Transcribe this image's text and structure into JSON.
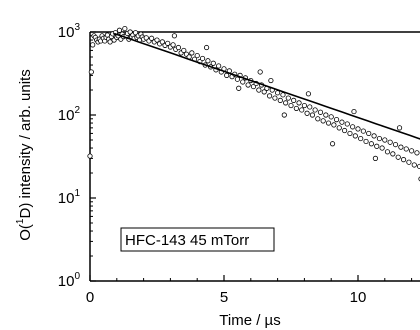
{
  "chart_data": {
    "type": "scatter",
    "title": "",
    "xlabel": "Time / µs",
    "ylabel": "O(1D) intensity / arb. units",
    "ylabel_parts": {
      "pre": "O(",
      "sup": "1",
      "post": "D) intensity / arb. units"
    },
    "xlim": [
      -0.1,
      13.5
    ],
    "ylim": [
      1,
      1000
    ],
    "yscale": "log",
    "grid": false,
    "x_ticks": [
      {
        "value": 0,
        "label": "0"
      },
      {
        "value": 5,
        "label": "5"
      },
      {
        "value": 10,
        "label": "10"
      }
    ],
    "y_ticks": [
      {
        "value": 1,
        "base": "10",
        "exp": "0"
      },
      {
        "value": 10,
        "base": "10",
        "exp": "1"
      },
      {
        "value": 100,
        "base": "10",
        "exp": "2"
      },
      {
        "value": 1000,
        "base": "10",
        "exp": "3"
      }
    ],
    "annotation": "HFC-143 45 mTorr",
    "fit": {
      "type": "exponential",
      "x": [
        0.9,
        13.5
      ],
      "y": [
        960,
        38
      ]
    },
    "series": [
      {
        "marker": "open-circle",
        "points": [
          [
            0.0,
            32
          ],
          [
            0.05,
            330
          ],
          [
            0.1,
            700
          ],
          [
            0.15,
            900
          ],
          [
            0.2,
            860
          ],
          [
            0.25,
            800
          ],
          [
            0.3,
            760
          ],
          [
            0.35,
            820
          ],
          [
            0.4,
            780
          ],
          [
            0.45,
            900
          ],
          [
            0.5,
            840
          ],
          [
            0.55,
            780
          ],
          [
            0.6,
            860
          ],
          [
            0.65,
            920
          ],
          [
            0.7,
            820
          ],
          [
            0.75,
            760
          ],
          [
            0.8,
            880
          ],
          [
            0.85,
            950
          ],
          [
            0.9,
            800
          ],
          [
            0.95,
            980
          ],
          [
            1.0,
            860
          ],
          [
            1.05,
            900
          ],
          [
            1.1,
            1050
          ],
          [
            1.15,
            820
          ],
          [
            1.2,
            940
          ],
          [
            1.25,
            880
          ],
          [
            1.3,
            1100
          ],
          [
            1.35,
            900
          ],
          [
            1.4,
            960
          ],
          [
            1.45,
            820
          ],
          [
            1.5,
            1000
          ],
          [
            1.55,
            880
          ],
          [
            1.6,
            920
          ],
          [
            1.65,
            840
          ],
          [
            1.7,
            980
          ],
          [
            1.75,
            860
          ],
          [
            1.8,
            900
          ],
          [
            1.85,
            800
          ],
          [
            1.9,
            940
          ],
          [
            1.95,
            870
          ],
          [
            2.0,
            820
          ],
          [
            2.1,
            850
          ],
          [
            2.2,
            780
          ],
          [
            2.3,
            840
          ],
          [
            2.4,
            760
          ],
          [
            2.5,
            800
          ],
          [
            2.6,
            720
          ],
          [
            2.7,
            760
          ],
          [
            2.8,
            690
          ],
          [
            2.9,
            730
          ],
          [
            3.0,
            660
          ],
          [
            3.1,
            700
          ],
          [
            3.2,
            620
          ],
          [
            3.3,
            650
          ],
          [
            3.4,
            560
          ],
          [
            3.5,
            600
          ],
          [
            3.6,
            540
          ],
          [
            3.7,
            500
          ],
          [
            3.8,
            560
          ],
          [
            3.9,
            470
          ],
          [
            4.0,
            520
          ],
          [
            4.1,
            440
          ],
          [
            4.2,
            480
          ],
          [
            4.3,
            400
          ],
          [
            4.4,
            450
          ],
          [
            4.5,
            380
          ],
          [
            4.6,
            420
          ],
          [
            4.7,
            350
          ],
          [
            4.8,
            390
          ],
          [
            4.9,
            330
          ],
          [
            5.0,
            360
          ],
          [
            5.1,
            300
          ],
          [
            5.2,
            340
          ],
          [
            5.3,
            290
          ],
          [
            5.4,
            310
          ],
          [
            5.5,
            270
          ],
          [
            5.6,
            300
          ],
          [
            5.7,
            250
          ],
          [
            5.8,
            280
          ],
          [
            5.9,
            230
          ],
          [
            6.0,
            260
          ],
          [
            6.1,
            220
          ],
          [
            6.2,
            240
          ],
          [
            6.3,
            200
          ],
          [
            6.4,
            230
          ],
          [
            6.5,
            190
          ],
          [
            6.6,
            210
          ],
          [
            6.7,
            170
          ],
          [
            6.8,
            200
          ],
          [
            6.9,
            160
          ],
          [
            7.0,
            185
          ],
          [
            7.1,
            150
          ],
          [
            7.2,
            175
          ],
          [
            7.3,
            140
          ],
          [
            7.4,
            160
          ],
          [
            7.5,
            130
          ],
          [
            7.6,
            150
          ],
          [
            7.7,
            120
          ],
          [
            7.8,
            140
          ],
          [
            7.9,
            115
          ],
          [
            8.0,
            130
          ],
          [
            8.1,
            105
          ],
          [
            8.2,
            125
          ],
          [
            8.3,
            100
          ],
          [
            8.4,
            115
          ],
          [
            8.5,
            90
          ],
          [
            8.6,
            108
          ],
          [
            8.7,
            85
          ],
          [
            8.8,
            100
          ],
          [
            8.9,
            80
          ],
          [
            9.0,
            95
          ],
          [
            9.1,
            76
          ],
          [
            9.2,
            88
          ],
          [
            9.3,
            70
          ],
          [
            9.4,
            82
          ],
          [
            9.5,
            65
          ],
          [
            9.6,
            78
          ],
          [
            9.7,
            60
          ],
          [
            9.8,
            72
          ],
          [
            9.9,
            56
          ],
          [
            10.0,
            68
          ],
          [
            10.1,
            52
          ],
          [
            10.2,
            64
          ],
          [
            10.3,
            48
          ],
          [
            10.4,
            60
          ],
          [
            10.5,
            45
          ],
          [
            10.6,
            56
          ],
          [
            10.7,
            42
          ],
          [
            10.8,
            52
          ],
          [
            10.9,
            40
          ],
          [
            11.0,
            50
          ],
          [
            11.1,
            36
          ],
          [
            11.2,
            47
          ],
          [
            11.3,
            34
          ],
          [
            11.4,
            44
          ],
          [
            11.5,
            31
          ],
          [
            11.6,
            41
          ],
          [
            11.7,
            29
          ],
          [
            11.8,
            39
          ],
          [
            11.9,
            27
          ],
          [
            12.0,
            37
          ],
          [
            12.1,
            25
          ],
          [
            12.2,
            35
          ],
          [
            12.3,
            24
          ],
          [
            12.4,
            33
          ],
          [
            12.5,
            22
          ],
          [
            12.6,
            31
          ],
          [
            12.7,
            21
          ],
          [
            12.8,
            30
          ],
          [
            12.9,
            20
          ],
          [
            13.0,
            28
          ],
          [
            13.1,
            19
          ],
          [
            13.2,
            26
          ],
          [
            13.3,
            18
          ],
          [
            13.4,
            25
          ],
          [
            3.15,
            900
          ],
          [
            4.35,
            650
          ],
          [
            5.55,
            210
          ],
          [
            6.35,
            330
          ],
          [
            7.25,
            100
          ],
          [
            8.15,
            180
          ],
          [
            9.05,
            45
          ],
          [
            9.85,
            110
          ],
          [
            10.65,
            30
          ],
          [
            11.55,
            70
          ],
          [
            12.35,
            17
          ],
          [
            6.75,
            260
          ]
        ]
      }
    ]
  }
}
